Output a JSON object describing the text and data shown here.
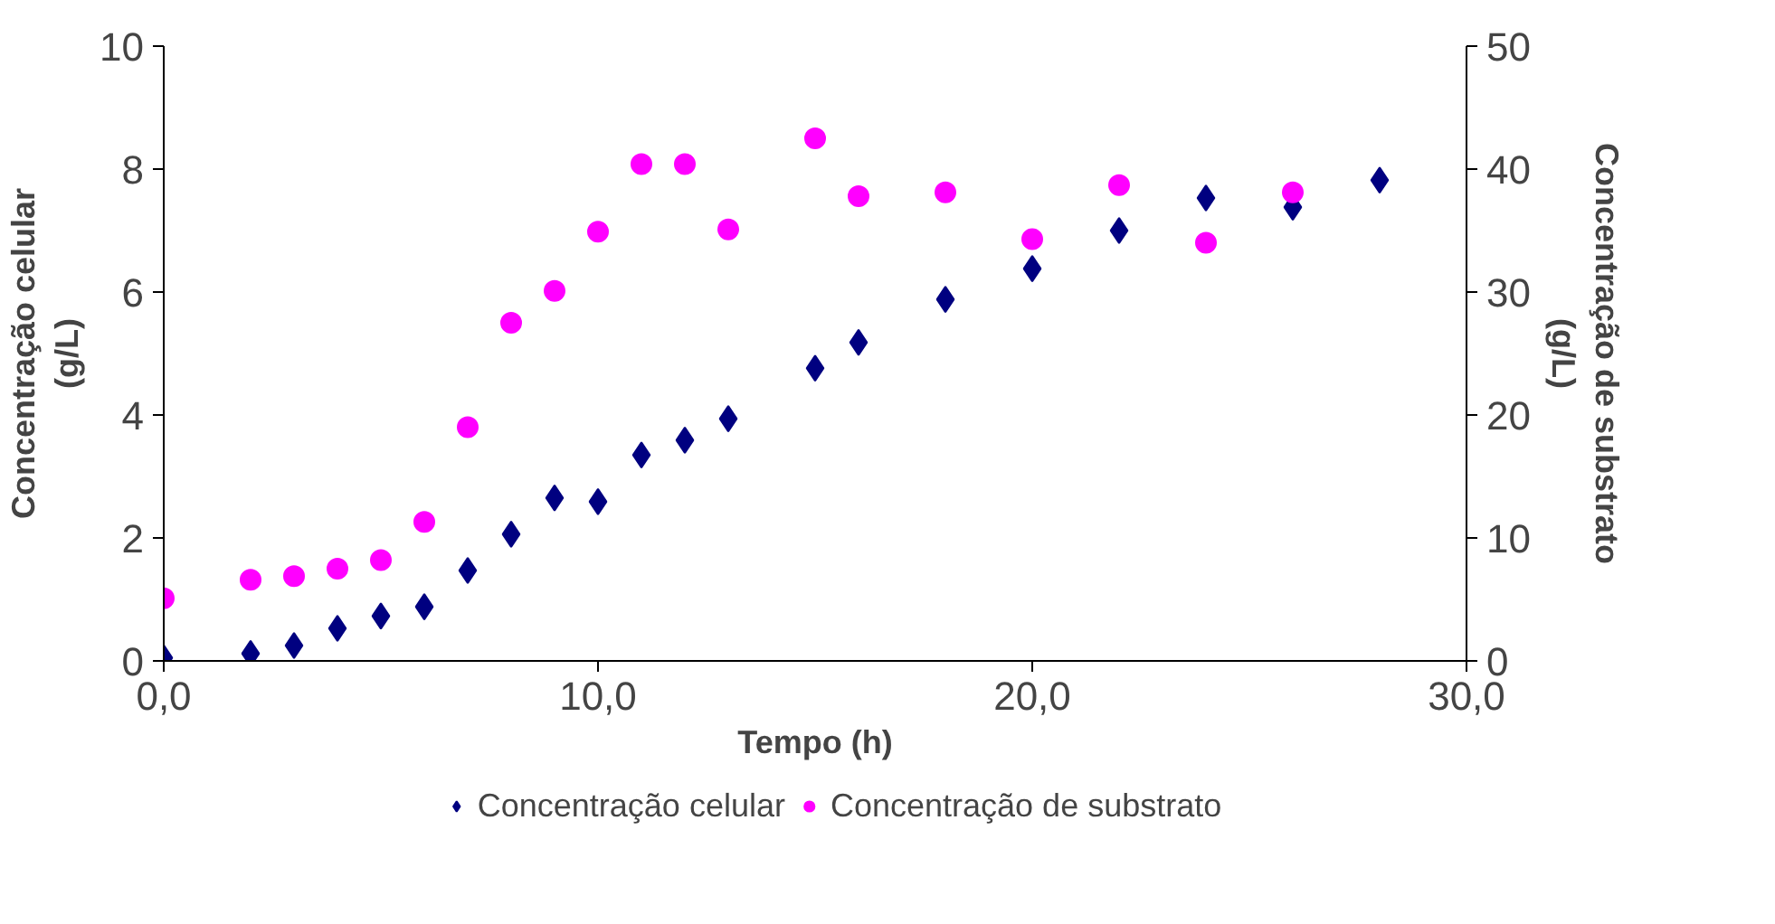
{
  "chart_data": {
    "type": "scatter",
    "xlabel": "Tempo (h)",
    "ylabel": "Concentração celular (g/L)",
    "y2label": "Concentração de substrato (g/L)",
    "x": [
      0,
      2,
      3,
      4,
      5,
      6,
      7,
      8,
      9,
      10,
      11,
      12,
      13,
      15,
      16,
      18,
      20,
      22,
      24,
      26,
      28
    ],
    "series": [
      {
        "name": "Concentração celular",
        "color": "#000080",
        "marker": "diamond",
        "values": [
          0.05,
          0.12,
          0.25,
          0.53,
          0.73,
          0.88,
          1.47,
          2.06,
          2.65,
          2.59,
          3.35,
          3.59,
          3.94,
          4.76,
          5.18,
          5.88,
          6.38,
          7.0,
          7.53,
          7.38,
          7.82
        ]
      },
      {
        "name": "Concentração de substrato",
        "color": "#ff00ff",
        "marker": "circle",
        "axis": "y2",
        "x": [
          0,
          2,
          3,
          4,
          5,
          6,
          7,
          8,
          9,
          10,
          11,
          12,
          13,
          15,
          16,
          18,
          20,
          22,
          24,
          26
        ],
        "values": [
          5.1,
          6.6,
          6.9,
          7.5,
          8.2,
          11.3,
          19.0,
          27.5,
          30.1,
          34.9,
          40.4,
          40.4,
          35.1,
          42.5,
          37.8,
          38.1,
          34.3,
          38.7,
          34.0,
          38.1
        ]
      }
    ],
    "xlim": [
      0,
      30
    ],
    "xticks": [
      {
        "value": 0,
        "label": "0,0"
      },
      {
        "value": 10,
        "label": "10,0"
      },
      {
        "value": 20,
        "label": "20,0"
      },
      {
        "value": 30,
        "label": "30,0"
      }
    ],
    "ylim": [
      0,
      10
    ],
    "yticks": [
      0,
      2,
      4,
      6,
      8,
      10
    ],
    "y2lim": [
      0,
      50
    ],
    "y2ticks": [
      0,
      10,
      20,
      30,
      40,
      50
    ],
    "grid": false,
    "legend": "bottom"
  }
}
